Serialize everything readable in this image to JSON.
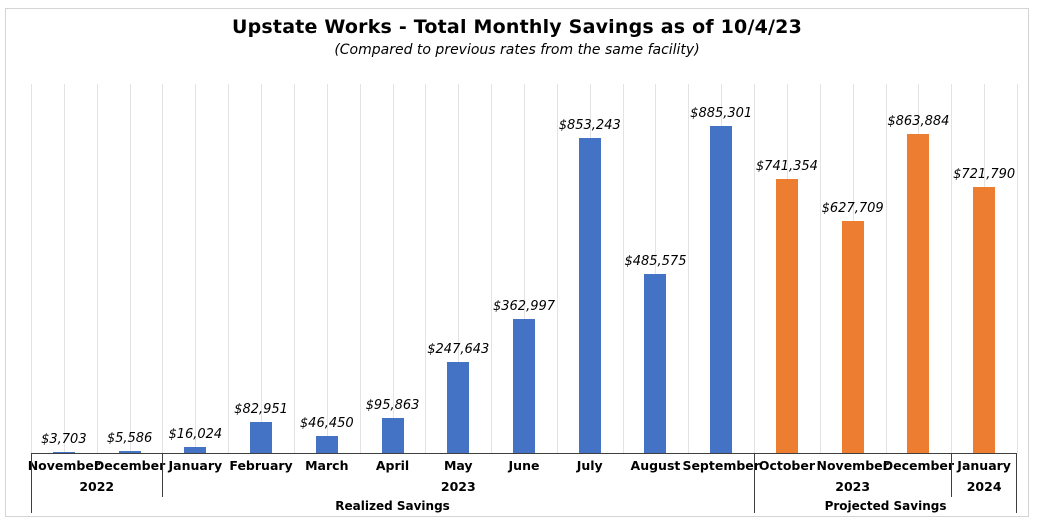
{
  "chart_data": {
    "type": "bar",
    "title": "Upstate Works - Total Monthly Savings as of 10/4/23",
    "subtitle": "(Compared to previous rates from the same facility)",
    "categories": [
      "November",
      "December",
      "January",
      "February",
      "March",
      "April",
      "May",
      "June",
      "July",
      "August",
      "September",
      "October",
      "November",
      "December",
      "January"
    ],
    "series": [
      {
        "name": "Realized Savings",
        "color": "#4472C4",
        "span": [
          0,
          10
        ],
        "values": [
          3703,
          5586,
          16024,
          82951,
          46450,
          95863,
          247643,
          362997,
          853243,
          485575,
          885301
        ],
        "labels": [
          "$3,703",
          "$5,586",
          "$16,024",
          "$82,951",
          "$46,450",
          "$95,863",
          "$247,643",
          "$362,997",
          "$853,243",
          "$485,575",
          "$885,301"
        ]
      },
      {
        "name": "Projected Savings",
        "color": "#ED7D31",
        "span": [
          11,
          14
        ],
        "values": [
          741354,
          627709,
          863884,
          721790
        ],
        "labels": [
          "$741,354",
          "$627,709",
          "$863,884",
          "$721,790"
        ]
      }
    ],
    "year_groups": [
      {
        "label": "2022",
        "span": [
          0,
          1
        ]
      },
      {
        "label": "2023",
        "span": [
          2,
          10
        ]
      },
      {
        "label": "2023",
        "span": [
          11,
          13
        ]
      },
      {
        "label": "2024",
        "span": [
          14,
          14
        ]
      }
    ],
    "type_groups": [
      {
        "label": "Realized Savings",
        "span": [
          0,
          10
        ]
      },
      {
        "label": "Projected Savings",
        "span": [
          11,
          14
        ]
      }
    ],
    "ylim": [
      0,
      1000000
    ],
    "xlabel": "",
    "ylabel": "",
    "legend": "none",
    "grid": "vertical lines at category boundaries and midpoints",
    "gridline_color": "#E3E3E3",
    "axis_line_color": "#3F3F3F",
    "data_label_style": "italic"
  }
}
